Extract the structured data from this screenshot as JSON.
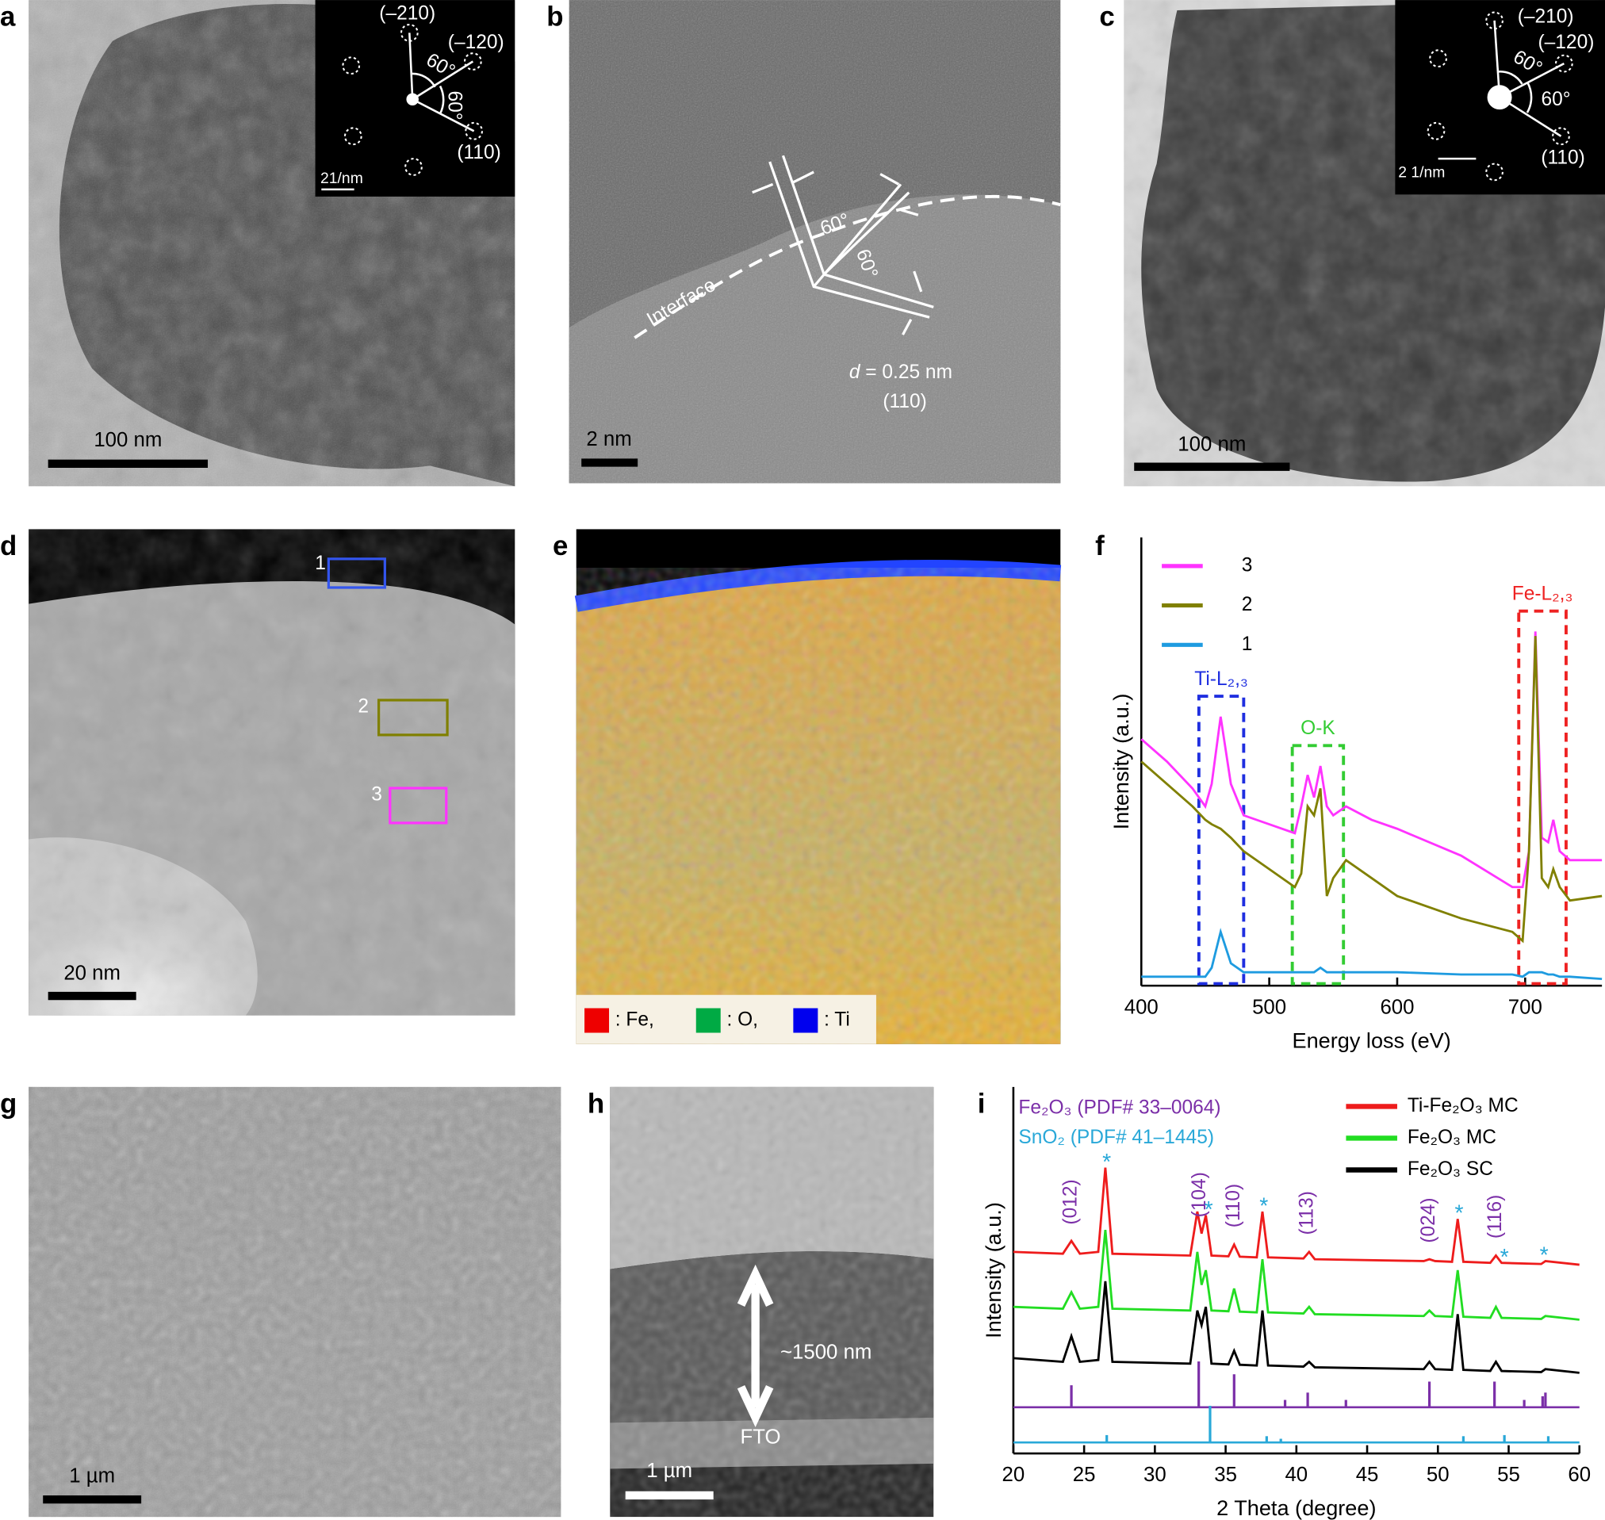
{
  "panels": {
    "a": {
      "letter": "a",
      "scale_bar": "100 nm",
      "inset": {
        "spots": [
          "(–210)",
          "(–120)",
          "(110)"
        ],
        "angles": [
          "60°",
          "60°"
        ],
        "scale": "21/nm"
      }
    },
    "b": {
      "letter": "b",
      "interface": "Interface",
      "angles": [
        "60°",
        "60°"
      ],
      "d_symbol": "d",
      "d_value": " = 0.25 nm",
      "plane": "(110)",
      "scale_bar": "2 nm"
    },
    "c": {
      "letter": "c",
      "scale_bar": "100 nm",
      "inset": {
        "spots": [
          "(–210)",
          "(–120)",
          "(110)"
        ],
        "angles": [
          "60°",
          "60°"
        ],
        "scale": "2 1/nm"
      }
    },
    "d": {
      "letter": "d",
      "regions": [
        "1",
        "2",
        "3"
      ],
      "scale_bar": "20 nm"
    },
    "e": {
      "letter": "e",
      "legend": [
        ": Fe,",
        ": O,",
        ": Ti"
      ]
    },
    "f": {
      "letter": "f"
    },
    "g": {
      "letter": "g",
      "scale_bar": "1 µm"
    },
    "h": {
      "letter": "h",
      "thickness": "~1500 nm",
      "substrate": "FTO",
      "scale_bar": "1 µm"
    },
    "i": {
      "letter": "i"
    }
  },
  "chart_data": [
    {
      "type": "line",
      "x_label": "Energy loss (eV)",
      "y_label": "Intensity (a.u.)",
      "xlim": [
        400,
        760
      ],
      "xticks": [
        400,
        500,
        600,
        700
      ],
      "ylim": [
        0,
        100
      ],
      "x": [
        400,
        420,
        440,
        450,
        455,
        462,
        470,
        480,
        500,
        520,
        525,
        530,
        535,
        540,
        545,
        550,
        560,
        580,
        600,
        650,
        690,
        698,
        703,
        708,
        713,
        718,
        722,
        727,
        735,
        760
      ],
      "series": [
        {
          "name": "3",
          "color": "#ff33ff",
          "values": [
            55,
            50,
            44,
            40,
            45,
            60,
            45,
            38,
            36,
            34,
            40,
            47,
            42,
            49,
            40,
            38,
            40,
            37,
            35,
            29,
            22,
            22,
            30,
            79,
            33,
            32,
            37,
            30,
            28,
            28
          ]
        },
        {
          "name": "2",
          "color": "#808000",
          "values": [
            50,
            45,
            40,
            37,
            36,
            35,
            33,
            30,
            26,
            22,
            25,
            40,
            38,
            44,
            20,
            24,
            28,
            24,
            20,
            15,
            12,
            10,
            30,
            78,
            24,
            22,
            26,
            22,
            19,
            20
          ]
        },
        {
          "name": "1",
          "color": "#1e9be0",
          "values": [
            2,
            2,
            2,
            2,
            4,
            12,
            5,
            3,
            3,
            3,
            3,
            3,
            3,
            4,
            3,
            3,
            3,
            3,
            3,
            2.5,
            2.5,
            2,
            3,
            3,
            3,
            2.5,
            2.5,
            2,
            2,
            1.5
          ]
        }
      ],
      "annotations": [
        {
          "label": "Ti-L₂,₃",
          "color": "#1f2fe0",
          "span": [
            445,
            480
          ]
        },
        {
          "label": "O-K",
          "color": "#33cc33",
          "span": [
            518,
            558
          ]
        },
        {
          "label": "Fe-L₂,₃",
          "color": "#ee2222",
          "span": [
            695,
            732
          ]
        }
      ]
    },
    {
      "type": "line",
      "x_label": "2 Theta (degree)",
      "y_label": "Intensity (a.u.)",
      "xlim": [
        20,
        60
      ],
      "xticks": [
        20,
        25,
        30,
        35,
        40,
        45,
        50,
        55,
        60
      ],
      "ylim": [
        0,
        100
      ],
      "x": [
        20,
        23.5,
        24.1,
        24.7,
        26,
        26.5,
        27,
        32.5,
        33,
        33.3,
        33.6,
        34,
        35.2,
        35.6,
        36,
        37.2,
        37.6,
        38,
        40.5,
        40.9,
        41.3,
        49,
        49.4,
        49.8,
        51,
        51.4,
        51.8,
        53.7,
        54.1,
        54.5,
        57.3,
        57.6,
        60
      ],
      "series": [
        {
          "name": "Ti-Fe₂O₃ MC",
          "color": "#ee1c1c",
          "values": [
            55,
            54.5,
            58,
            54.5,
            55,
            78,
            54.5,
            54,
            66,
            60,
            65,
            54,
            53.8,
            57,
            53.7,
            53.5,
            66,
            53.5,
            53.2,
            55,
            53,
            52.5,
            53,
            52.5,
            52.3,
            64,
            52.3,
            52,
            54,
            52,
            51.7,
            52.5,
            51.5
          ]
        },
        {
          "name": "Fe₂O₃ MC",
          "color": "#22dd22",
          "values": [
            40,
            39.5,
            44,
            39.5,
            40,
            61,
            39.5,
            39,
            55,
            46,
            50,
            39,
            38.8,
            45,
            38.7,
            38.5,
            53,
            38.5,
            38.2,
            40,
            38,
            37.5,
            39,
            37.5,
            37.3,
            50,
            37.3,
            37,
            40,
            37,
            36.7,
            37.5,
            36.5
          ]
        },
        {
          "name": "Fe₂O₃ SC",
          "color": "#000000",
          "values": [
            26,
            25,
            32,
            25,
            25.5,
            47,
            25,
            24.5,
            39,
            35,
            40,
            24.5,
            24.3,
            28,
            24.2,
            24,
            39,
            24,
            23.7,
            25,
            23.5,
            23,
            25,
            23,
            22.8,
            38,
            22.8,
            22.5,
            25,
            22.5,
            22.2,
            23,
            22
          ]
        }
      ],
      "references": [
        {
          "name": "Fe₂O₃ (PDF# 33–0064)",
          "color": "#7b2fa8",
          "baseline": 12.6,
          "positions": [
            24.1,
            33.1,
            35.6,
            39.2,
            40.8,
            43.5,
            49.4,
            54.0,
            56.1,
            57.4,
            57.6
          ],
          "heights": [
            6,
            12.5,
            9,
            2,
            4,
            2,
            7,
            7,
            2,
            3,
            4
          ]
        },
        {
          "name": "SnO₂ (PDF# 41–1445)",
          "color": "#29a8d8",
          "baseline": 3,
          "positions": [
            26.6,
            33.9,
            37.9,
            38.9,
            51.8,
            54.7,
            57.8
          ],
          "heights": [
            2,
            10,
            1.7,
            1,
            1.7,
            2,
            1.7
          ]
        }
      ],
      "peak_labels": {
        "color": "#7b2fa8",
        "items": [
          {
            "label": "(012)",
            "x": 24.1
          },
          {
            "label": "(104)",
            "x": 33.2
          },
          {
            "label": "(110)",
            "x": 35.6
          },
          {
            "label": "(113)",
            "x": 40.8
          },
          {
            "label": "(024)",
            "x": 49.4
          },
          {
            "label": "(116)",
            "x": 54.1
          }
        ]
      },
      "stars": {
        "label": "*",
        "color": "#29a8d8",
        "x": [
          26.6,
          33.8,
          37.7,
          51.5,
          54.7,
          57.5
        ]
      }
    }
  ]
}
